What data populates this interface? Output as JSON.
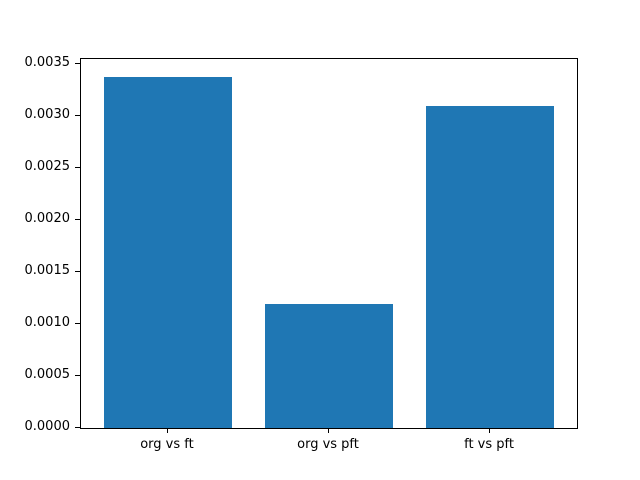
{
  "figure": {
    "background": "#ffffff",
    "plot_background": "#ffffff",
    "spine_color": "#000000",
    "tick_color": "#000000",
    "text_color": "#000000"
  },
  "chart_data": {
    "type": "bar",
    "title": "",
    "xlabel": "",
    "ylabel": "",
    "categories": [
      "org vs ft",
      "org vs pft",
      "ft vs pft"
    ],
    "values": [
      0.003375,
      0.00119,
      0.003095
    ],
    "bar_color": "#1f77b4",
    "bar_positions": [
      0,
      1,
      2
    ],
    "bar_width": 0.8,
    "xlim": [
      -0.54,
      2.54
    ],
    "ylim": [
      0,
      0.003544
    ],
    "yticks": [
      {
        "value": 0.0,
        "label": "0.0000"
      },
      {
        "value": 0.0005,
        "label": "0.0005"
      },
      {
        "value": 0.001,
        "label": "0.0010"
      },
      {
        "value": 0.0015,
        "label": "0.0015"
      },
      {
        "value": 0.002,
        "label": "0.0020"
      },
      {
        "value": 0.0025,
        "label": "0.0025"
      },
      {
        "value": 0.003,
        "label": "0.0030"
      },
      {
        "value": 0.0035,
        "label": "0.0035"
      }
    ],
    "grid": false,
    "legend_position": "none"
  }
}
